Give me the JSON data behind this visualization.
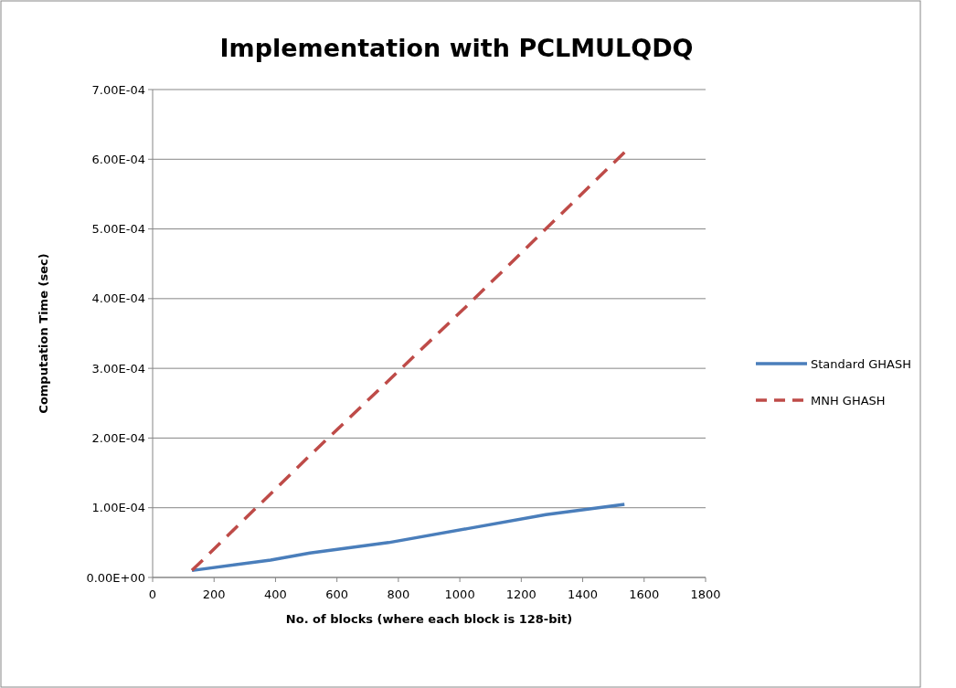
{
  "chart_data": {
    "type": "line",
    "title": "Implementation with PCLMULQDQ",
    "xlabel": "No. of blocks (where each block is 128-bit)",
    "ylabel": "Computation Time (sec)",
    "xlim": [
      0,
      1800
    ],
    "xticks": [
      0,
      200,
      400,
      600,
      800,
      1000,
      1200,
      1400,
      1600,
      1800
    ],
    "ylim": [
      0,
      0.0007
    ],
    "yticks": [
      {
        "value": 0,
        "label": "0.00E+00"
      },
      {
        "value": 0.0001,
        "label": "1.00E-04"
      },
      {
        "value": 0.0002,
        "label": "2.00E-04"
      },
      {
        "value": 0.0003,
        "label": "3.00E-04"
      },
      {
        "value": 0.0004,
        "label": "4.00E-04"
      },
      {
        "value": 0.0005,
        "label": "5.00E-04"
      },
      {
        "value": 0.0006,
        "label": "6.00E-04"
      },
      {
        "value": 0.0007,
        "label": "7.00E-04"
      }
    ],
    "grid": "y",
    "legend": "right",
    "marker": "none",
    "series": [
      {
        "name": "Standard GHASH",
        "color": "#4a7ebb",
        "line_style": "solid",
        "x": [
          128,
          384,
          512,
          768,
          1024,
          1280,
          1536
        ],
        "values": [
          1e-05,
          2.5e-05,
          3.5e-05,
          5e-05,
          7e-05,
          9e-05,
          0.000105
        ]
      },
      {
        "name": "MNH GHASH",
        "color": "#be4b48",
        "line_style": "dashed",
        "x": [
          128,
          512,
          1024,
          1536
        ],
        "values": [
          1e-05,
          0.000175,
          0.00039,
          0.00061
        ]
      }
    ]
  }
}
